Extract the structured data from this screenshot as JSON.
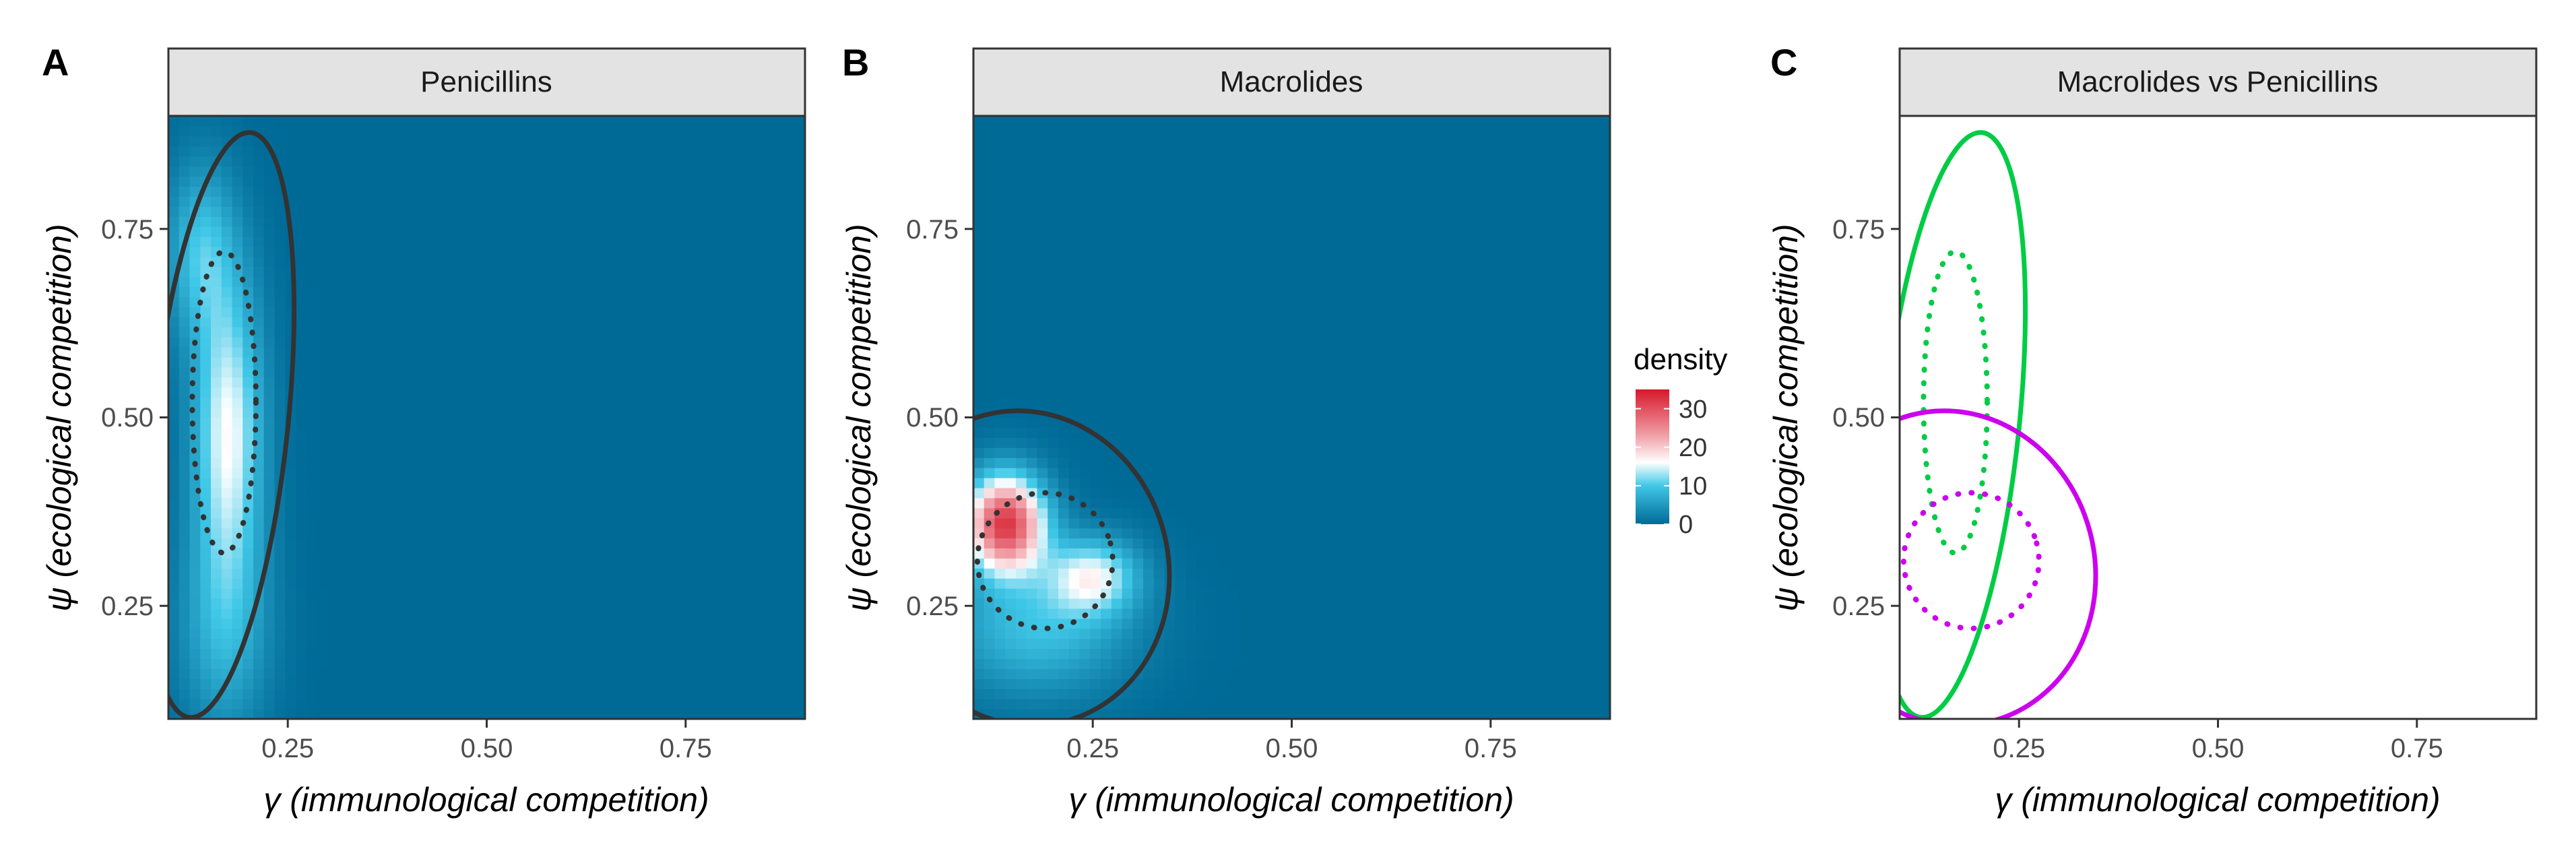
{
  "colors": {
    "low": "#006a97",
    "mid_low": "#40c8e8",
    "mid": "#ffffff",
    "mid_high": "#f0a0a8",
    "high": "#d7182a",
    "contour_dark": "#333333",
    "penicillins": "#00cc44",
    "macrolides": "#cc00ee",
    "strip_fill": "#e3e3e3"
  },
  "chart_data": [
    {
      "id": "A",
      "type": "heatmap",
      "letter": "A",
      "title": "Penicillins",
      "xlabel": "γ (immunological competition)",
      "ylabel": "ψ (ecological competition)",
      "xlim": [
        0.1,
        0.9
      ],
      "ylim": [
        0.1,
        0.9
      ],
      "xticks": [
        0.25,
        0.5,
        0.75
      ],
      "xtick_labels": [
        "0.25",
        "0.50",
        "0.75"
      ],
      "yticks": [
        0.25,
        0.5,
        0.75
      ],
      "ytick_labels": [
        "0.25",
        "0.50",
        "0.75"
      ],
      "density_peaks": [
        {
          "x": 0.175,
          "y": 0.48,
          "sx": 0.03,
          "sy": 0.14,
          "peak": 16
        },
        {
          "x": 0.14,
          "y": 0.72,
          "sx": 0.03,
          "sy": 0.08,
          "peak": 9
        },
        {
          "x": 0.17,
          "y": 0.22,
          "sx": 0.04,
          "sy": 0.1,
          "peak": 7
        }
      ],
      "contours": [
        {
          "style": "solid",
          "color": "contour_dark",
          "ellipse": {
            "cx": 0.165,
            "cy": 0.49,
            "rx": 0.085,
            "ry": 0.39,
            "rot": 6
          }
        },
        {
          "style": "dotted",
          "color": "contour_dark",
          "ellipse": {
            "cx": 0.17,
            "cy": 0.52,
            "rx": 0.04,
            "ry": 0.2,
            "rot": 0
          }
        }
      ]
    },
    {
      "id": "B",
      "type": "heatmap",
      "letter": "B",
      "title": "Macrolides",
      "xlabel": "γ (immunological competition)",
      "ylabel": "ψ (ecological competition)",
      "xlim": [
        0.1,
        0.9
      ],
      "ylim": [
        0.1,
        0.9
      ],
      "xticks": [
        0.25,
        0.5,
        0.75
      ],
      "xtick_labels": [
        "0.25",
        "0.50",
        "0.75"
      ],
      "yticks": [
        0.25,
        0.5,
        0.75
      ],
      "ytick_labels": [
        "0.25",
        "0.50",
        "0.75"
      ],
      "density_peaks": [
        {
          "x": 0.14,
          "y": 0.36,
          "sx": 0.035,
          "sy": 0.045,
          "peak": 32
        },
        {
          "x": 0.25,
          "y": 0.29,
          "sx": 0.04,
          "sy": 0.035,
          "peak": 14
        },
        {
          "x": 0.18,
          "y": 0.22,
          "sx": 0.08,
          "sy": 0.06,
          "peak": 9
        }
      ],
      "contours": [
        {
          "style": "solid",
          "color": "contour_dark",
          "ellipse": {
            "cx": 0.165,
            "cy": 0.3,
            "rx": 0.18,
            "ry": 0.21,
            "rot": -15
          }
        },
        {
          "style": "dotted",
          "color": "contour_dark",
          "ellipse": {
            "cx": 0.19,
            "cy": 0.31,
            "rx": 0.085,
            "ry": 0.09,
            "rot": -15
          }
        }
      ]
    },
    {
      "id": "C",
      "type": "scatter",
      "letter": "C",
      "title": "Macrolides vs Penicillins",
      "xlabel": "γ (immunological competition)",
      "ylabel": "ψ (ecological competition)",
      "xlim": [
        0.1,
        0.9
      ],
      "ylim": [
        0.1,
        0.9
      ],
      "xticks": [
        0.25,
        0.5,
        0.75
      ],
      "xtick_labels": [
        "0.25",
        "0.50",
        "0.75"
      ],
      "yticks": [
        0.25,
        0.5,
        0.75
      ],
      "ytick_labels": [
        "0.25",
        "0.50",
        "0.75"
      ],
      "contours": [
        {
          "style": "solid",
          "color": "penicillins",
          "ellipse": {
            "cx": 0.165,
            "cy": 0.49,
            "rx": 0.085,
            "ry": 0.39,
            "rot": 6
          }
        },
        {
          "style": "dotted",
          "color": "penicillins",
          "ellipse": {
            "cx": 0.17,
            "cy": 0.52,
            "rx": 0.04,
            "ry": 0.2,
            "rot": 0
          }
        },
        {
          "style": "solid",
          "color": "macrolides",
          "ellipse": {
            "cx": 0.165,
            "cy": 0.3,
            "rx": 0.18,
            "ry": 0.21,
            "rot": -15
          }
        },
        {
          "style": "dotted",
          "color": "macrolides",
          "ellipse": {
            "cx": 0.19,
            "cy": 0.31,
            "rx": 0.085,
            "ry": 0.09,
            "rot": -15
          }
        }
      ]
    }
  ],
  "legend": {
    "title": "density",
    "max": 35,
    "ticks": [
      0,
      10,
      20,
      30
    ],
    "tick_labels": [
      "0",
      "10",
      "20",
      "30"
    ]
  }
}
